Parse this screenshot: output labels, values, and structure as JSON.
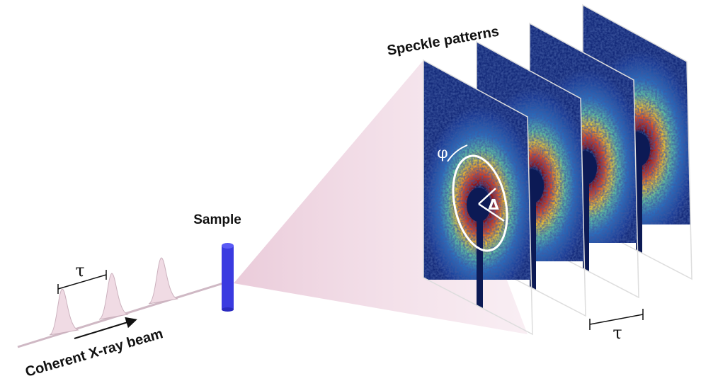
{
  "title": "Speckle patterns",
  "sample_label": "Sample",
  "beam_label": "Coherent X-ray beam",
  "pulse_spacing_label": "τ",
  "frame_spacing_label": "τ",
  "angle_label": "φ",
  "delta_label": "Δ"
}
